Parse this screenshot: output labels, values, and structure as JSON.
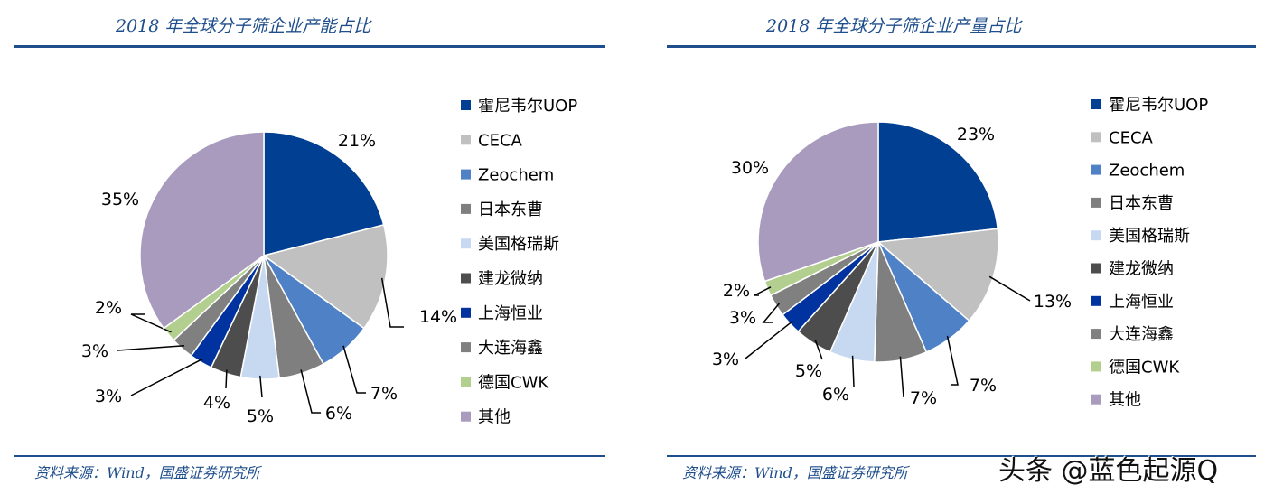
{
  "colors": [
    "#003f91",
    "#c0c0c0",
    "#4f81c6",
    "#7f7f7f",
    "#c6d9f0",
    "#4d4d4d",
    "#0033a0",
    "#808080",
    "#b3cf8f",
    "#a99bbd"
  ],
  "chart_data": [
    {
      "type": "pie",
      "title": "2018 年全球分子筛企业产能占比",
      "legend_position": "right",
      "categories": [
        "霍尼韦尔UOP",
        "CECA",
        "Zeochem",
        "日本东曹",
        "美国格瑞斯",
        "建龙微纳",
        "上海恒业",
        "大连海鑫",
        "德国CWK",
        "其他"
      ],
      "values": [
        21,
        14,
        7,
        6,
        5,
        4,
        3,
        3,
        2,
        35
      ],
      "labels": [
        "21%",
        "14%",
        "7%",
        "6%",
        "5%",
        "4%",
        "3%",
        "3%",
        "2%",
        "35%"
      ],
      "source": "资料来源：Wind，国盛证券研究所"
    },
    {
      "type": "pie",
      "title": "2018 年全球分子筛企业产量占比",
      "legend_position": "right",
      "categories": [
        "霍尼韦尔UOP",
        "CECA",
        "Zeochem",
        "日本东曹",
        "美国格瑞斯",
        "建龙微纳",
        "上海恒业",
        "大连海鑫",
        "德国CWK",
        "其他"
      ],
      "values": [
        23,
        13,
        7,
        7,
        6,
        5,
        3,
        3,
        2,
        30
      ],
      "labels": [
        "23%",
        "13%",
        "7%",
        "7%",
        "6%",
        "5%",
        "3%",
        "3%",
        "2%",
        "30%"
      ],
      "source": "资料来源：Wind，国盛证券研究所"
    }
  ],
  "watermark": "头条 @蓝色起源Q"
}
